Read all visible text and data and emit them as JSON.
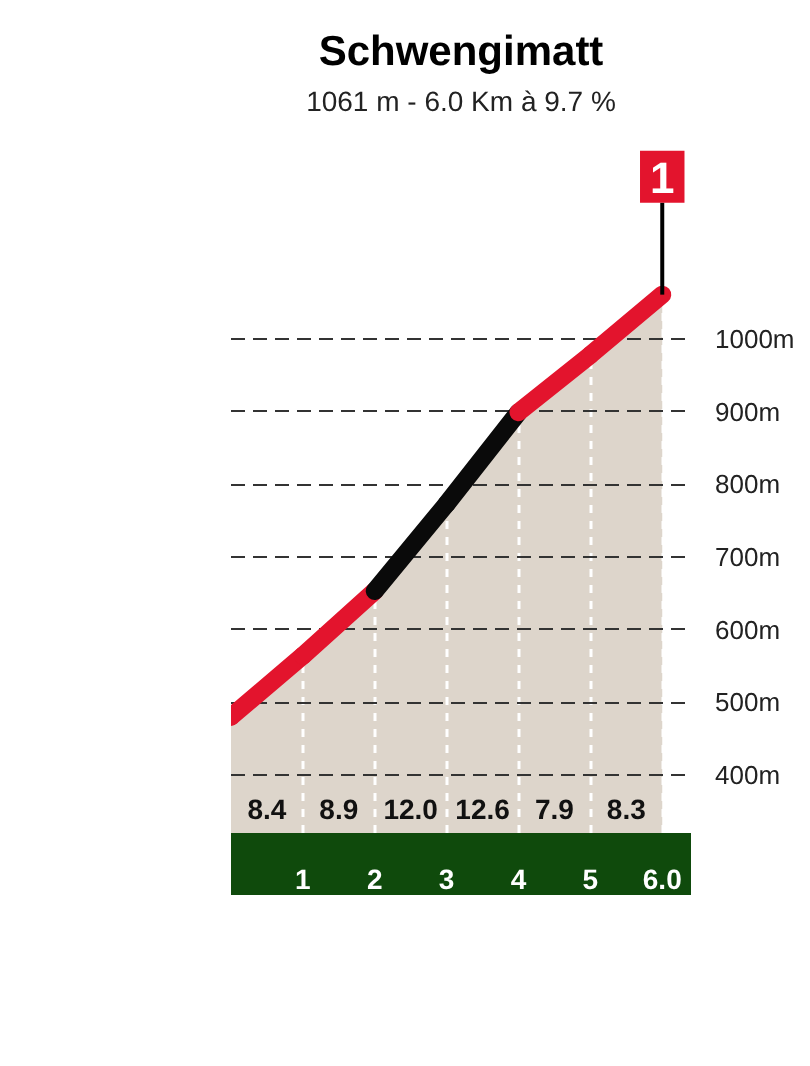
{
  "chart_data": {
    "type": "area",
    "title": "Schwengimatt",
    "subtitle": "1061 m - 6.0 Km à 9.7 %",
    "x": [
      0,
      1,
      2,
      3,
      4,
      5,
      6
    ],
    "series": [
      {
        "color": "#ddd5cb",
        "values": [
          480,
          564,
          653,
          773,
          899,
          978,
          1061
        ],
        "colors": [
          "#e3142d",
          "#e3142d",
          "#e3142d",
          "#0a0a0a",
          "#0a0a0a",
          "#e3142d",
          "#e3142d"
        ]
      }
    ],
    "xlim": [
      0,
      6.4
    ],
    "xticks": [
      1,
      2,
      3,
      4,
      5,
      {
        "value": 6,
        "label": "6.0"
      }
    ],
    "ylim": [
      320,
      1300
    ],
    "yticks": [
      {
        "value": 400,
        "label": "400m"
      },
      {
        "value": 500,
        "label": "500m"
      },
      {
        "value": 600,
        "label": "600m"
      },
      {
        "value": 700,
        "label": "700m"
      },
      {
        "value": 800,
        "label": "800m"
      },
      {
        "value": 900,
        "label": "900m"
      },
      {
        "value": 1000,
        "label": "1000m"
      }
    ],
    "grid": true,
    "annotations": [
      "8.4",
      "8.9",
      "12.0",
      "12.6",
      "7.9",
      "8.3",
      {
        "text": "1",
        "x": 6,
        "y": 1061
      }
    ]
  }
}
